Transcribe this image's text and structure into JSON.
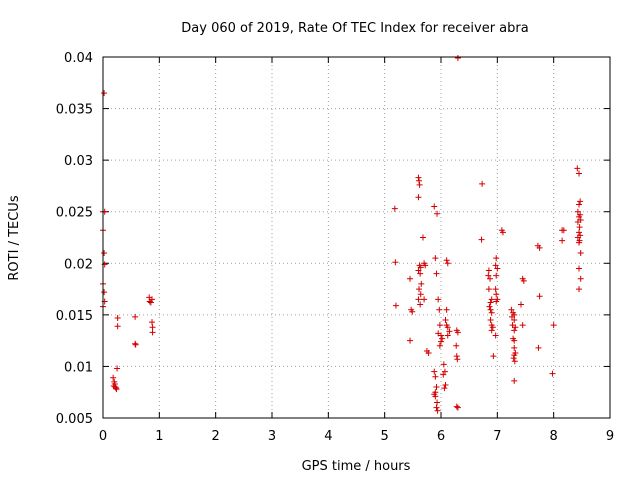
{
  "chart_data": {
    "type": "scatter",
    "title": "Day 060 of 2019, Rate Of TEC Index for receiver abra",
    "xlabel": "GPS time / hours",
    "ylabel": "ROTI / TECUs",
    "xlim": [
      0,
      9
    ],
    "ylim": [
      0.005,
      0.04
    ],
    "grid": true,
    "marker": "plus",
    "marker_color": "#d40000",
    "xticks": [
      0,
      1,
      2,
      3,
      4,
      5,
      6,
      7,
      8,
      9
    ],
    "xtick_labels": [
      "0",
      "1",
      "2",
      "3",
      "4",
      "5",
      "6",
      "7",
      "8",
      "9"
    ],
    "yticks": [
      0.005,
      0.01,
      0.015,
      0.02,
      0.025,
      0.03,
      0.035,
      0.04
    ],
    "ytick_labels": [
      "0.005",
      "0.01",
      "0.015",
      "0.02",
      "0.025",
      "0.03",
      "0.035",
      "0.04"
    ],
    "points": [
      [
        0.02,
        0.0365
      ],
      [
        0.0,
        0.025
      ],
      [
        0.03,
        0.025
      ],
      [
        0.0,
        0.0232
      ],
      [
        0.02,
        0.021
      ],
      [
        0.03,
        0.0199
      ],
      [
        0.0,
        0.018
      ],
      [
        0.02,
        0.0172
      ],
      [
        0.0,
        0.0158
      ],
      [
        0.03,
        0.0163
      ],
      [
        0.18,
        0.0089
      ],
      [
        0.2,
        0.0085
      ],
      [
        0.21,
        0.0083
      ],
      [
        0.19,
        0.0081
      ],
      [
        0.22,
        0.008
      ],
      [
        0.24,
        0.0078
      ],
      [
        0.23,
        0.0079
      ],
      [
        0.25,
        0.0098
      ],
      [
        0.26,
        0.0147
      ],
      [
        0.26,
        0.0139
      ],
      [
        0.57,
        0.0148
      ],
      [
        0.57,
        0.0122
      ],
      [
        0.58,
        0.0121
      ],
      [
        0.82,
        0.0167
      ],
      [
        0.83,
        0.0163
      ],
      [
        0.85,
        0.0162
      ],
      [
        0.87,
        0.0165
      ],
      [
        0.87,
        0.0143
      ],
      [
        0.88,
        0.0138
      ],
      [
        0.88,
        0.0133
      ],
      [
        5.18,
        0.0253
      ],
      [
        5.19,
        0.0201
      ],
      [
        5.2,
        0.0159
      ],
      [
        5.45,
        0.0185
      ],
      [
        5.47,
        0.0155
      ],
      [
        5.49,
        0.0153
      ],
      [
        5.45,
        0.0125
      ],
      [
        5.6,
        0.0283
      ],
      [
        5.61,
        0.028
      ],
      [
        5.62,
        0.0276
      ],
      [
        5.6,
        0.0264
      ],
      [
        5.62,
        0.0198
      ],
      [
        5.64,
        0.0196
      ],
      [
        5.6,
        0.0193
      ],
      [
        5.63,
        0.019
      ],
      [
        5.65,
        0.018
      ],
      [
        5.61,
        0.0175
      ],
      [
        5.64,
        0.017
      ],
      [
        5.6,
        0.0165
      ],
      [
        5.63,
        0.016
      ],
      [
        5.68,
        0.0225
      ],
      [
        5.7,
        0.02
      ],
      [
        5.72,
        0.0198
      ],
      [
        5.7,
        0.0165
      ],
      [
        5.75,
        0.0115
      ],
      [
        5.78,
        0.0113
      ],
      [
        5.88,
        0.0255
      ],
      [
        5.93,
        0.0248
      ],
      [
        5.9,
        0.0205
      ],
      [
        5.92,
        0.019
      ],
      [
        5.95,
        0.0165
      ],
      [
        5.97,
        0.0155
      ],
      [
        5.98,
        0.014
      ],
      [
        5.95,
        0.0132
      ],
      [
        6.0,
        0.013
      ],
      [
        6.02,
        0.0127
      ],
      [
        6.0,
        0.0124
      ],
      [
        5.98,
        0.012
      ],
      [
        5.88,
        0.0095
      ],
      [
        5.9,
        0.009
      ],
      [
        5.92,
        0.008
      ],
      [
        5.9,
        0.0075
      ],
      [
        5.88,
        0.0073
      ],
      [
        5.9,
        0.0071
      ],
      [
        5.93,
        0.0065
      ],
      [
        5.92,
        0.006
      ],
      [
        5.94,
        0.0057
      ],
      [
        6.05,
        0.0102
      ],
      [
        6.07,
        0.0095
      ],
      [
        6.04,
        0.0092
      ],
      [
        6.08,
        0.0082
      ],
      [
        6.06,
        0.0079
      ],
      [
        6.1,
        0.0155
      ],
      [
        6.08,
        0.0145
      ],
      [
        6.1,
        0.014
      ],
      [
        6.12,
        0.0138
      ],
      [
        6.15,
        0.0134
      ],
      [
        6.12,
        0.013
      ],
      [
        6.1,
        0.0203
      ],
      [
        6.12,
        0.02
      ],
      [
        6.3,
        0.0399
      ],
      [
        6.28,
        0.0135
      ],
      [
        6.3,
        0.0133
      ],
      [
        6.27,
        0.012
      ],
      [
        6.28,
        0.011
      ],
      [
        6.29,
        0.0107
      ],
      [
        6.28,
        0.0061
      ],
      [
        6.3,
        0.006
      ],
      [
        6.73,
        0.0277
      ],
      [
        6.72,
        0.0223
      ],
      [
        6.85,
        0.0193
      ],
      [
        6.84,
        0.0188
      ],
      [
        6.87,
        0.0185
      ],
      [
        6.85,
        0.0175
      ],
      [
        6.9,
        0.0165
      ],
      [
        6.88,
        0.0162
      ],
      [
        6.86,
        0.0158
      ],
      [
        6.88,
        0.0155
      ],
      [
        6.9,
        0.0152
      ],
      [
        6.88,
        0.0145
      ],
      [
        6.9,
        0.014
      ],
      [
        6.92,
        0.0138
      ],
      [
        6.9,
        0.0135
      ],
      [
        6.93,
        0.011
      ],
      [
        6.98,
        0.0205
      ],
      [
        6.97,
        0.0198
      ],
      [
        7.0,
        0.0195
      ],
      [
        6.98,
        0.0188
      ],
      [
        6.97,
        0.0175
      ],
      [
        6.98,
        0.017
      ],
      [
        7.0,
        0.0165
      ],
      [
        6.98,
        0.0163
      ],
      [
        6.97,
        0.013
      ],
      [
        7.08,
        0.0232
      ],
      [
        7.1,
        0.023
      ],
      [
        7.25,
        0.0155
      ],
      [
        7.28,
        0.0152
      ],
      [
        7.3,
        0.015
      ],
      [
        7.26,
        0.0148
      ],
      [
        7.3,
        0.0145
      ],
      [
        7.27,
        0.014
      ],
      [
        7.32,
        0.0138
      ],
      [
        7.3,
        0.0135
      ],
      [
        7.28,
        0.0127
      ],
      [
        7.3,
        0.0125
      ],
      [
        7.3,
        0.0118
      ],
      [
        7.32,
        0.0113
      ],
      [
        7.3,
        0.0111
      ],
      [
        7.29,
        0.0108
      ],
      [
        7.31,
        0.0105
      ],
      [
        7.3,
        0.0086
      ],
      [
        7.45,
        0.0185
      ],
      [
        7.47,
        0.0183
      ],
      [
        7.42,
        0.016
      ],
      [
        7.45,
        0.014
      ],
      [
        7.72,
        0.0217
      ],
      [
        7.75,
        0.0215
      ],
      [
        7.75,
        0.0168
      ],
      [
        7.73,
        0.0118
      ],
      [
        8.0,
        0.014
      ],
      [
        7.98,
        0.0093
      ],
      [
        8.15,
        0.0232
      ],
      [
        8.18,
        0.0232
      ],
      [
        8.15,
        0.0222
      ],
      [
        8.42,
        0.0292
      ],
      [
        8.45,
        0.0287
      ],
      [
        8.47,
        0.026
      ],
      [
        8.45,
        0.0257
      ],
      [
        8.43,
        0.025
      ],
      [
        8.47,
        0.0247
      ],
      [
        8.45,
        0.0245
      ],
      [
        8.48,
        0.0242
      ],
      [
        8.43,
        0.024
      ],
      [
        8.46,
        0.0235
      ],
      [
        8.45,
        0.023
      ],
      [
        8.47,
        0.0227
      ],
      [
        8.43,
        0.0225
      ],
      [
        8.46,
        0.0222
      ],
      [
        8.45,
        0.022
      ],
      [
        8.48,
        0.021
      ],
      [
        8.45,
        0.0195
      ],
      [
        8.48,
        0.0185
      ],
      [
        8.45,
        0.0175
      ]
    ]
  }
}
